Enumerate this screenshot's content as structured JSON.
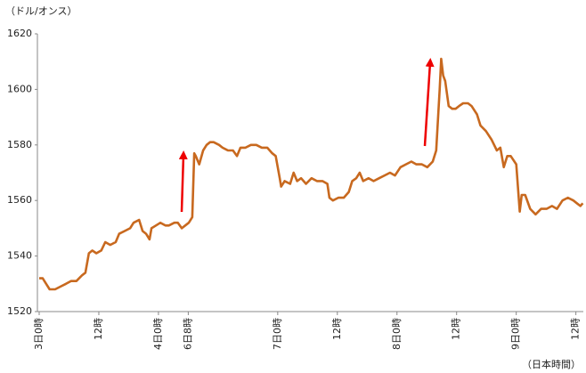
{
  "chart_data": {
    "type": "line",
    "y_label": "（ドル/オンス）",
    "x_label": "（日本時間）",
    "xlim": [
      0,
      109.5
    ],
    "ylim": [
      1520,
      1620
    ],
    "yticks": [
      1520,
      1540,
      1560,
      1580,
      1600,
      1620
    ],
    "xticks": [
      {
        "value": 0,
        "label": "3日0時"
      },
      {
        "value": 12,
        "label": "12時"
      },
      {
        "value": 24,
        "label": "4日0時"
      },
      {
        "value": 30,
        "label": "6日8時"
      },
      {
        "value": 48,
        "label": "7日0時"
      },
      {
        "value": 60,
        "label": "12時"
      },
      {
        "value": 72,
        "label": "8日0時"
      },
      {
        "value": 84,
        "label": "12時"
      },
      {
        "value": 96,
        "label": "9日0時"
      },
      {
        "value": 108,
        "label": "12時"
      }
    ],
    "grid": false,
    "series": [
      {
        "color": "#c8691f",
        "x": [
          0,
          0.7,
          1.4,
          2.1,
          3.2,
          4.3,
          5.4,
          6.4,
          7.5,
          8.6,
          9.3,
          10.0,
          10.7,
          11.5,
          12.5,
          13.3,
          14.3,
          15.4,
          16.1,
          17.2,
          18.3,
          19.0,
          20.1,
          20.8,
          21.5,
          22.2,
          22.6,
          23.5,
          24.4,
          25.4,
          26.1,
          27.2,
          27.9,
          28.7,
          29.4,
          30.1,
          30.8,
          31.2,
          31.5,
          32.2,
          33.0,
          33.7,
          34.4,
          35.1,
          36.2,
          36.9,
          38.0,
          39.0,
          39.8,
          40.5,
          41.5,
          42.6,
          43.7,
          44.8,
          45.9,
          46.9,
          47.6,
          48.4,
          48.7,
          49.4,
          50.5,
          51.2,
          51.9,
          52.7,
          53.7,
          54.8,
          55.9,
          57.0,
          58.0,
          58.4,
          59.1,
          60.2,
          61.3,
          62.3,
          63.0,
          63.8,
          64.5,
          65.2,
          66.3,
          67.3,
          68.4,
          69.5,
          70.6,
          71.6,
          72.7,
          73.8,
          74.9,
          75.9,
          77.0,
          78.1,
          79.2,
          79.9,
          80.6,
          80.9,
          81.3,
          81.7,
          82.4,
          83.1,
          83.8,
          84.5,
          85.3,
          86.3,
          87.0,
          88.1,
          88.8,
          89.9,
          91.0,
          92.1,
          92.8,
          93.5,
          94.2,
          94.9,
          96.0,
          96.7,
          97.1,
          97.8,
          98.8,
          99.9,
          101.0,
          102.1,
          103.2,
          104.2,
          105.3,
          106.4,
          107.5,
          108.2,
          108.9,
          109.4
        ],
        "values": [
          1532,
          1532,
          1530,
          1528,
          1528,
          1529,
          1530,
          1531,
          1531,
          1533,
          1534,
          1541,
          1542,
          1541,
          1542,
          1545,
          1544,
          1545,
          1548,
          1549,
          1550,
          1552,
          1553,
          1549,
          1548,
          1546,
          1550,
          1551,
          1552,
          1551,
          1551,
          1552,
          1552,
          1550,
          1551,
          1552,
          1554,
          1577,
          1576,
          1573,
          1578,
          1580,
          1581,
          1581,
          1580,
          1579,
          1578,
          1578,
          1576,
          1579,
          1579,
          1580,
          1580,
          1579,
          1579,
          1577,
          1576,
          1568,
          1565,
          1567,
          1566,
          1570,
          1567,
          1568,
          1566,
          1568,
          1567,
          1567,
          1566,
          1561,
          1560,
          1561,
          1561,
          1563,
          1567,
          1568,
          1570,
          1567,
          1568,
          1567,
          1568,
          1569,
          1570,
          1569,
          1572,
          1573,
          1574,
          1573,
          1573,
          1572,
          1574,
          1578,
          1600,
          1611,
          1605,
          1603,
          1594,
          1593,
          1593,
          1594,
          1595,
          1595,
          1594,
          1591,
          1587,
          1585,
          1582,
          1578,
          1579,
          1572,
          1576,
          1576,
          1573,
          1556,
          1562,
          1562,
          1557,
          1555,
          1557,
          1557,
          1558,
          1557,
          1560,
          1561,
          1560,
          1559,
          1558,
          1559
        ]
      }
    ]
  }
}
